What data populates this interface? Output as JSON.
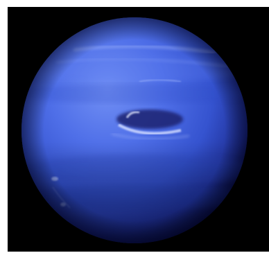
{
  "image": {
    "subject": "planet-photo",
    "background_color": "#000000",
    "planet_colors": {
      "highlight": "#6f8ef5",
      "mid": "#3f5fe0",
      "shadow": "#1b2a8a",
      "limb": "#0a1040"
    },
    "features": [
      "dark-spot",
      "bright-cloud-streaks",
      "banding"
    ]
  }
}
